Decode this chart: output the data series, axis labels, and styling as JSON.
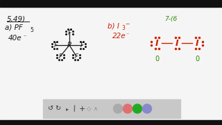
{
  "bg_color": "#f5f5f5",
  "black": "#1a1a1a",
  "red": "#cc2200",
  "green": "#2a8800",
  "top_bar_color": "#111111",
  "bottom_bar_color": "#111111",
  "toolbar_bg": "#c8c8c8",
  "title": "5,49)",
  "a_label": "a) PF",
  "a_sub": "5",
  "electrons_a": "40e",
  "b_label": "b) I",
  "b_sub3": "3",
  "b_sup_minus": "-",
  "electrons_b": "22e",
  "formula_note": "7-(6",
  "formal_charge": "0"
}
